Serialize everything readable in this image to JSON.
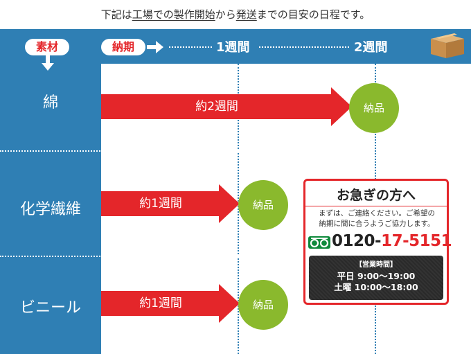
{
  "notice": {
    "part1": "下記は",
    "part2": "工場での製作開始",
    "part3": "から",
    "part4": "発送",
    "part5": "までの目安の日程です。"
  },
  "header": {
    "material_label": "素材",
    "lead_time_label": "納期",
    "week1": "1週間",
    "week2": "2週間",
    "box_icon": "cardboard-box-icon"
  },
  "rows": [
    {
      "material": "綿",
      "arrow_label": "約2週間",
      "weeks": 2,
      "badge": "納品"
    },
    {
      "material": "化学繊維",
      "arrow_label": "約1週間",
      "weeks": 1,
      "badge": "納品"
    },
    {
      "material": "ビニール",
      "arrow_label": "約1週間",
      "weeks": 1,
      "badge": "納品"
    }
  ],
  "contact": {
    "title": "お急ぎの方へ",
    "message_line1": "まずは、ご連絡ください。ご希望の",
    "message_line2": "納期に間に合うようご協力します。",
    "phone_prefix": "0120-",
    "phone_suffix": "17-5151",
    "freedial_icon": "freedial-icon",
    "hours_heading": "【営業時間】",
    "weekday_hours": "平日 9:00〜19:00",
    "saturday_hours": "土曜 10:00〜18:00"
  },
  "colors": {
    "frame_blue": "#2f7fb4",
    "arrow_red": "#e4262a",
    "badge_green": "#8ab92d"
  }
}
